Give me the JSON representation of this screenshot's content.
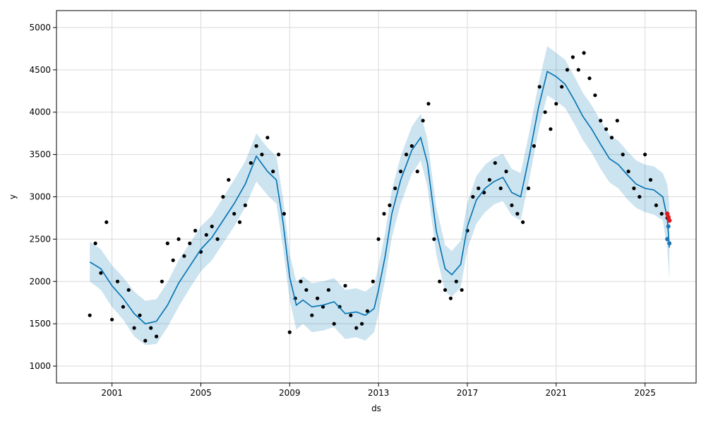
{
  "chart_data": {
    "type": "line",
    "xlabel": "ds",
    "ylabel": "y",
    "xlim": [
      1998.5,
      2027.3
    ],
    "ylim": [
      800,
      5200
    ],
    "x_ticks": [
      2001,
      2005,
      2009,
      2013,
      2017,
      2021,
      2025
    ],
    "y_ticks": [
      1000,
      1500,
      2000,
      2500,
      3000,
      3500,
      4000,
      4500,
      5000
    ],
    "grid": true,
    "colors": {
      "forecast_line": "#0072B2",
      "uncertainty_band": "#0072B2",
      "observed_points": "#000000",
      "highlight_points": "#e0191e",
      "future_points": "#1f77b4"
    },
    "series": [
      {
        "kind": "forecast",
        "x": [
          2000.0,
          2000.5,
          2001.0,
          2001.5,
          2002.0,
          2002.5,
          2003.0,
          2003.5,
          2004.0,
          2004.5,
          2005.0,
          2005.5,
          2006.0,
          2006.5,
          2007.0,
          2007.5,
          2008.0,
          2008.4,
          2008.7,
          2009.0,
          2009.3,
          2009.6,
          2010.0,
          2010.5,
          2011.0,
          2011.5,
          2012.0,
          2012.4,
          2012.8,
          2013.0,
          2013.3,
          2013.6,
          2014.0,
          2014.5,
          2014.9,
          2015.2,
          2015.6,
          2016.0,
          2016.3,
          2016.7,
          2017.0,
          2017.4,
          2017.8,
          2018.2,
          2018.6,
          2019.0,
          2019.4,
          2019.8,
          2020.2,
          2020.6,
          2021.0,
          2021.4,
          2021.8,
          2022.2,
          2022.6,
          2023.0,
          2023.4,
          2023.8,
          2024.2,
          2024.6,
          2025.0,
          2025.4,
          2025.8,
          2026.0,
          2026.1
        ],
        "y": [
          2230,
          2150,
          1950,
          1800,
          1620,
          1500,
          1530,
          1720,
          1980,
          2180,
          2380,
          2520,
          2720,
          2920,
          3150,
          3480,
          3300,
          3200,
          2700,
          2050,
          1720,
          1780,
          1700,
          1720,
          1760,
          1620,
          1640,
          1600,
          1680,
          1900,
          2300,
          2800,
          3200,
          3550,
          3700,
          3400,
          2600,
          2150,
          2080,
          2200,
          2650,
          2960,
          3100,
          3180,
          3230,
          3050,
          3000,
          3500,
          4050,
          4480,
          4420,
          4330,
          4150,
          3950,
          3800,
          3620,
          3450,
          3380,
          3260,
          3150,
          3100,
          3080,
          3000,
          2750,
          2400
        ],
        "lower": [
          2000,
          1900,
          1700,
          1550,
          1350,
          1250,
          1260,
          1460,
          1700,
          1920,
          2120,
          2250,
          2450,
          2650,
          2880,
          3180,
          3020,
          2920,
          2400,
          1780,
          1430,
          1500,
          1400,
          1420,
          1460,
          1320,
          1340,
          1300,
          1400,
          1620,
          2030,
          2520,
          2920,
          3270,
          3430,
          3120,
          2320,
          1880,
          1820,
          1930,
          2380,
          2680,
          2820,
          2910,
          2950,
          2780,
          2720,
          3220,
          3780,
          4200,
          4130,
          4050,
          3870,
          3670,
          3520,
          3330,
          3170,
          3100,
          2970,
          2870,
          2820,
          2790,
          2720,
          2400,
          2000
        ],
        "upper": [
          2470,
          2380,
          2190,
          2050,
          1880,
          1770,
          1790,
          1990,
          2250,
          2450,
          2650,
          2780,
          2990,
          3200,
          3420,
          3750,
          3580,
          3480,
          2980,
          2320,
          2000,
          2060,
          1980,
          2000,
          2040,
          1900,
          1920,
          1880,
          1960,
          2180,
          2580,
          3080,
          3480,
          3830,
          3980,
          3680,
          2880,
          2430,
          2360,
          2480,
          2930,
          3240,
          3380,
          3460,
          3510,
          3330,
          3280,
          3780,
          4330,
          4780,
          4700,
          4620,
          4430,
          4230,
          4080,
          3900,
          3730,
          3660,
          3540,
          3430,
          3380,
          3360,
          3280,
          3150,
          2900
        ]
      },
      {
        "kind": "observed",
        "x": [
          2000.0,
          2000.25,
          2000.5,
          2000.75,
          2001.0,
          2001.25,
          2001.5,
          2001.75,
          2002.0,
          2002.25,
          2002.5,
          2002.75,
          2003.0,
          2003.25,
          2003.5,
          2003.75,
          2004.0,
          2004.25,
          2004.5,
          2004.75,
          2005.0,
          2005.25,
          2005.5,
          2005.75,
          2006.0,
          2006.25,
          2006.5,
          2006.75,
          2007.0,
          2007.25,
          2007.5,
          2007.75,
          2008.0,
          2008.25,
          2008.5,
          2008.75,
          2009.0,
          2009.25,
          2009.5,
          2009.75,
          2010.0,
          2010.25,
          2010.5,
          2010.75,
          2011.0,
          2011.25,
          2011.5,
          2011.75,
          2012.0,
          2012.25,
          2012.5,
          2012.75,
          2013.0,
          2013.25,
          2013.5,
          2013.75,
          2014.0,
          2014.25,
          2014.5,
          2014.75,
          2015.0,
          2015.25,
          2015.5,
          2015.75,
          2016.0,
          2016.25,
          2016.5,
          2016.75,
          2017.0,
          2017.25,
          2017.5,
          2017.75,
          2018.0,
          2018.25,
          2018.5,
          2018.75,
          2019.0,
          2019.25,
          2019.5,
          2019.75,
          2020.0,
          2020.25,
          2020.5,
          2020.75,
          2021.0,
          2021.25,
          2021.5,
          2021.75,
          2022.0,
          2022.25,
          2022.5,
          2022.75,
          2023.0,
          2023.25,
          2023.5,
          2023.75,
          2024.0,
          2024.25,
          2024.5,
          2024.75,
          2025.0,
          2025.25,
          2025.5,
          2025.75,
          2026.0
        ],
        "y": [
          1600,
          2450,
          2100,
          2700,
          1550,
          2000,
          1700,
          1900,
          1450,
          1600,
          1300,
          1450,
          1350,
          2000,
          2450,
          2250,
          2500,
          2300,
          2450,
          2600,
          2350,
          2550,
          2650,
          2500,
          3000,
          3200,
          2800,
          2700,
          2900,
          3400,
          3600,
          3500,
          3700,
          3300,
          3500,
          2800,
          1400,
          1800,
          2000,
          1900,
          1600,
          1800,
          1700,
          1900,
          1500,
          1700,
          1950,
          1600,
          1450,
          1500,
          1650,
          2000,
          2500,
          2800,
          2900,
          3100,
          3300,
          3500,
          3600,
          3300,
          3900,
          4100,
          2500,
          2000,
          1900,
          1800,
          2000,
          1900,
          2600,
          3000,
          3100,
          3050,
          3200,
          3400,
          3100,
          3300,
          2900,
          2800,
          2700,
          3100,
          3600,
          4300,
          4000,
          3800,
          4100,
          4300,
          4500,
          4650,
          4500,
          4700,
          4400,
          4200,
          3900,
          3800,
          3700,
          3900,
          3500,
          3300,
          3100,
          3000,
          3500,
          3200,
          2900,
          2800,
          2750
        ]
      },
      {
        "kind": "highlight",
        "x": [
          2026.0,
          2026.05,
          2026.1
        ],
        "y": [
          2800,
          2760,
          2720
        ]
      },
      {
        "kind": "future",
        "x": [
          2026.0,
          2026.05,
          2026.1
        ],
        "y": [
          2500,
          2650,
          2450
        ]
      }
    ]
  }
}
